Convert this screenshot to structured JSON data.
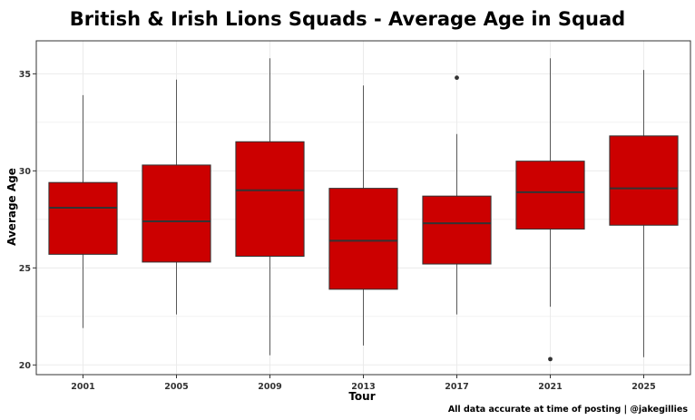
{
  "chart_data": {
    "type": "box",
    "title": "British & Irish Lions Squads - Average Age in Squad",
    "xlabel": "Tour",
    "ylabel": "Average Age",
    "ylim": [
      19.5,
      36.7
    ],
    "yticks": [
      20,
      25,
      30,
      35
    ],
    "grid": true,
    "categories": [
      "2001",
      "2005",
      "2009",
      "2013",
      "2017",
      "2021",
      "2025"
    ],
    "boxes": [
      {
        "category": "2001",
        "whisker_low": 21.9,
        "q1": 25.7,
        "median": 28.1,
        "q3": 29.4,
        "whisker_high": 33.9,
        "outliers": []
      },
      {
        "category": "2005",
        "whisker_low": 22.6,
        "q1": 25.3,
        "median": 27.4,
        "q3": 30.3,
        "whisker_high": 34.7,
        "outliers": []
      },
      {
        "category": "2009",
        "whisker_low": 20.5,
        "q1": 25.6,
        "median": 29.0,
        "q3": 31.5,
        "whisker_high": 35.8,
        "outliers": []
      },
      {
        "category": "2013",
        "whisker_low": 21.0,
        "q1": 23.9,
        "median": 26.4,
        "q3": 29.1,
        "whisker_high": 34.4,
        "outliers": []
      },
      {
        "category": "2017",
        "whisker_low": 22.6,
        "q1": 25.2,
        "median": 27.3,
        "q3": 28.7,
        "whisker_high": 31.9,
        "outliers": [
          34.8
        ]
      },
      {
        "category": "2021",
        "whisker_low": 23.0,
        "q1": 27.0,
        "median": 28.9,
        "q3": 30.5,
        "whisker_high": 35.8,
        "outliers": [
          20.3
        ]
      },
      {
        "category": "2025",
        "whisker_low": 20.4,
        "q1": 27.2,
        "median": 29.1,
        "q3": 31.8,
        "whisker_high": 35.2,
        "outliers": []
      }
    ],
    "colors": {
      "box_fill": "#cc0000",
      "box_line": "#333333",
      "grid": "#ebebeb",
      "panel_border": "#333333"
    }
  },
  "caption": "All data accurate at time of posting | @jakegillies"
}
